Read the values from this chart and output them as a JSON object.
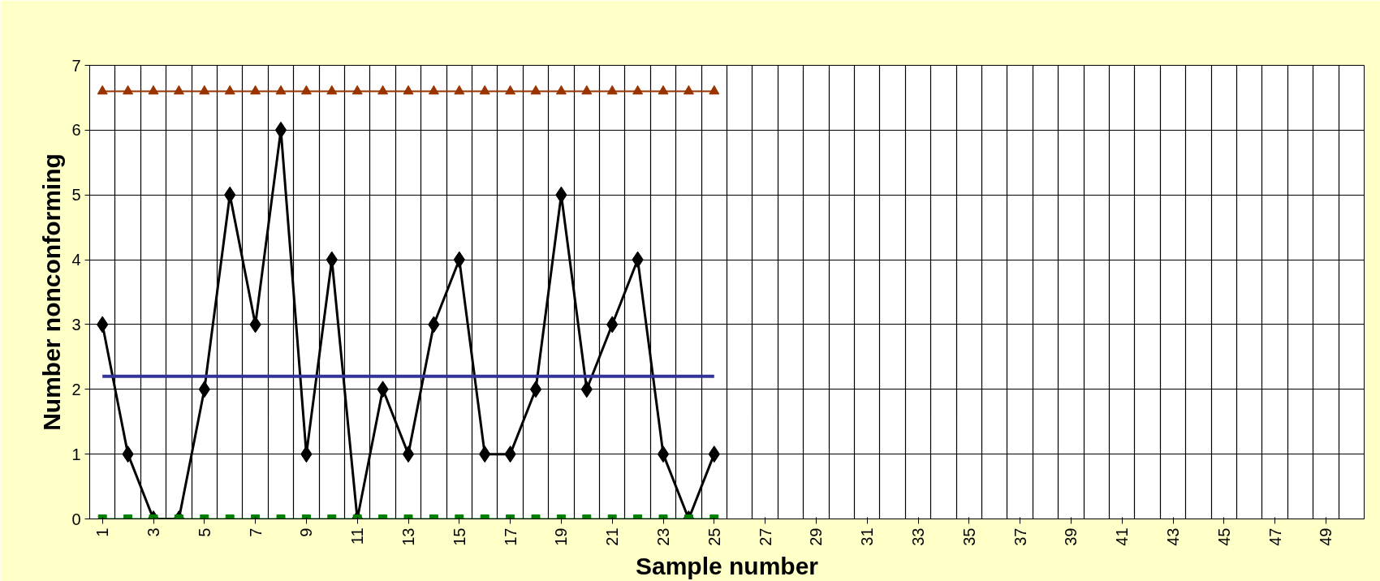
{
  "chart_data": {
    "type": "line",
    "xlabel": "Sample number",
    "ylabel": "Number nonconforming",
    "categories": [
      "1",
      null,
      "3",
      null,
      "5",
      null,
      "7",
      null,
      "9",
      null,
      "11",
      null,
      "13",
      null,
      "15",
      null,
      "17",
      null,
      "19",
      null,
      "21",
      null,
      "23",
      null,
      "25",
      null,
      "27",
      null,
      "29",
      null,
      "31",
      null,
      "33",
      null,
      "35",
      null,
      "37",
      null,
      "39",
      null,
      "41",
      null,
      "43",
      null,
      "45",
      null,
      "47",
      null,
      "49",
      null
    ],
    "series": [
      {
        "color": "#000000",
        "marker": "diamond",
        "values": [
          3,
          1,
          0,
          0,
          2,
          5,
          3,
          6,
          1,
          4,
          0,
          2,
          1,
          3,
          4,
          1,
          1,
          2,
          5,
          2,
          3,
          4,
          1,
          0,
          1,
          null,
          null,
          null,
          null,
          null,
          null,
          null,
          null,
          null,
          null,
          null,
          null,
          null,
          null,
          null,
          null,
          null,
          null,
          null,
          null,
          null,
          null,
          null,
          null,
          null
        ]
      },
      {
        "color": "#993300",
        "marker": "triangle",
        "values": [
          6.6,
          6.6,
          6.6,
          6.6,
          6.6,
          6.6,
          6.6,
          6.6,
          6.6,
          6.6,
          6.6,
          6.6,
          6.6,
          6.6,
          6.6,
          6.6,
          6.6,
          6.6,
          6.6,
          6.6,
          6.6,
          6.6,
          6.6,
          6.6,
          6.6,
          null,
          null,
          null,
          null,
          null,
          null,
          null,
          null,
          null,
          null,
          null,
          null,
          null,
          null,
          null,
          null,
          null,
          null,
          null,
          null,
          null,
          null,
          null,
          null,
          null
        ]
      },
      {
        "color": "#333399",
        "marker": "none",
        "values": [
          2.2,
          2.2,
          2.2,
          2.2,
          2.2,
          2.2,
          2.2,
          2.2,
          2.2,
          2.2,
          2.2,
          2.2,
          2.2,
          2.2,
          2.2,
          2.2,
          2.2,
          2.2,
          2.2,
          2.2,
          2.2,
          2.2,
          2.2,
          2.2,
          2.2,
          null,
          null,
          null,
          null,
          null,
          null,
          null,
          null,
          null,
          null,
          null,
          null,
          null,
          null,
          null,
          null,
          null,
          null,
          null,
          null,
          null,
          null,
          null,
          null,
          null
        ]
      },
      {
        "color": "#008000",
        "marker": "square",
        "values": [
          0,
          0,
          0,
          0,
          0,
          0,
          0,
          0,
          0,
          0,
          0,
          0,
          0,
          0,
          0,
          0,
          0,
          0,
          0,
          0,
          0,
          0,
          0,
          0,
          0,
          null,
          null,
          null,
          null,
          null,
          null,
          null,
          null,
          null,
          null,
          null,
          null,
          null,
          null,
          null,
          null,
          null,
          null,
          null,
          null,
          null,
          null,
          null,
          null,
          null
        ]
      }
    ],
    "ylim": [
      0,
      7
    ],
    "yticks": [
      0,
      1,
      2,
      3,
      4,
      5,
      6,
      7
    ],
    "grid": true
  }
}
